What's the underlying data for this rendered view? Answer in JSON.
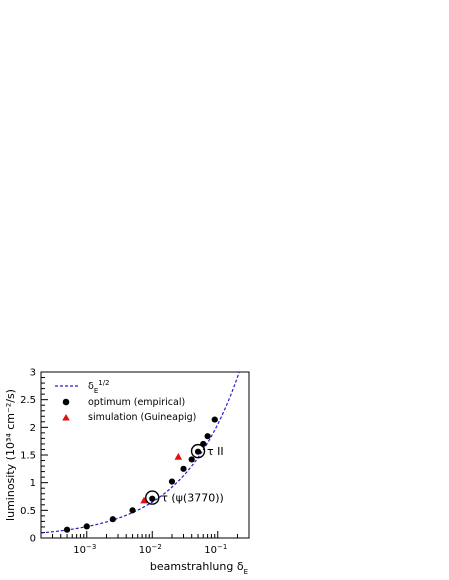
{
  "chart_data": {
    "type": "scatter",
    "x_scale": "log",
    "x_ticks": [
      "10^-3",
      "10^-2",
      "10^-1"
    ],
    "x_tick_values": [
      0.001,
      0.01,
      0.1
    ],
    "xlim": [
      0.0002,
      0.3
    ],
    "ylim": [
      0,
      3
    ],
    "y_ticks": [
      "0",
      "0.5",
      "1",
      "1.5",
      "2",
      "2.5",
      "3"
    ],
    "y_tick_values": [
      0,
      0.5,
      1,
      1.5,
      2,
      2.5,
      3
    ],
    "xlabel": "beamstrahlung δE",
    "ylabel": "luminosity (10³⁴ cm⁻²/s)",
    "grid": false,
    "legend_position": "top-left",
    "legend": [
      {
        "label": "δE^1/2",
        "marker": "dashed-line",
        "color": "#2020c0"
      },
      {
        "label": "optimum (empirical)",
        "marker": "circle",
        "color": "#000000"
      },
      {
        "label": "simulation (Guineapig)",
        "marker": "triangle",
        "color": "#e01010"
      }
    ],
    "series": [
      {
        "name": "δE^1/2",
        "kind": "curve",
        "coefficient": 6.5,
        "exponent": 0.5,
        "color": "#2020c0"
      },
      {
        "name": "optimum (empirical)",
        "kind": "points",
        "color": "#000000",
        "x": [
          0.0005,
          0.001,
          0.0025,
          0.005,
          0.01,
          0.02,
          0.03,
          0.04,
          0.05,
          0.06,
          0.07,
          0.09
        ],
        "y": [
          0.15,
          0.21,
          0.34,
          0.5,
          0.71,
          1.02,
          1.25,
          1.42,
          1.56,
          1.7,
          1.84,
          2.14
        ]
      },
      {
        "name": "simulation (Guineapig)",
        "kind": "points",
        "color": "#e01010",
        "x": [
          0.0075,
          0.025
        ],
        "y": [
          0.68,
          1.47
        ]
      }
    ],
    "annotations": [
      {
        "text": "τ (ψ(3770))",
        "x": 0.01,
        "y": 0.73
      },
      {
        "text": "τ II",
        "x": 0.05,
        "y": 1.57
      }
    ]
  }
}
